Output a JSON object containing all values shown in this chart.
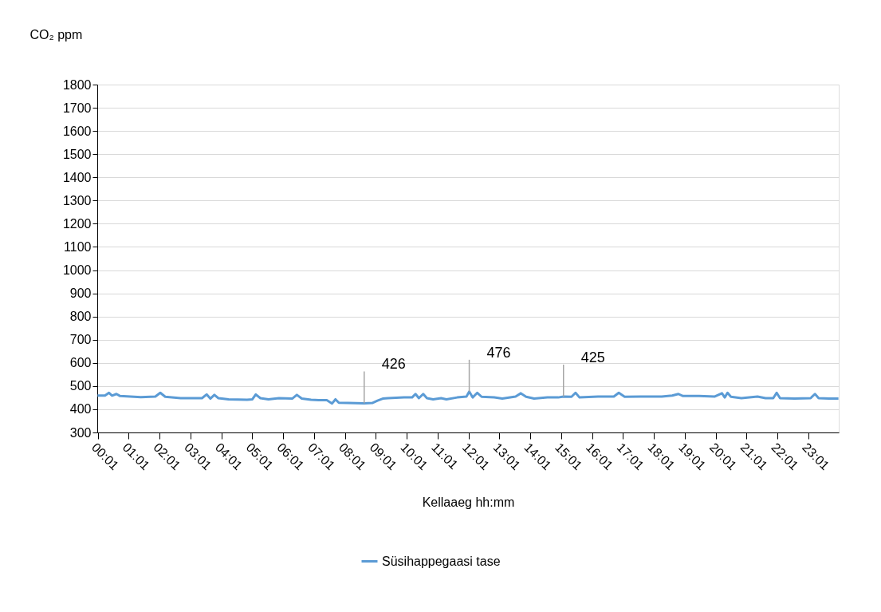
{
  "chart_data": {
    "type": "line",
    "xlabel": "Kellaaeg hh:mm",
    "ylabel": "CO₂ ppm",
    "x": [
      0.01,
      0.25,
      0.38,
      0.48,
      0.62,
      0.74,
      1.41,
      1.88,
      2.04,
      2.2,
      2.7,
      3.39,
      3.54,
      3.66,
      3.79,
      3.92,
      4.25,
      4.85,
      5.02,
      5.13,
      5.28,
      5.54,
      5.88,
      6.31,
      6.46,
      6.62,
      6.92,
      7.17,
      7.43,
      7.6,
      7.71,
      7.82,
      8.12,
      8.64,
      8.9,
      9.07,
      9.24,
      9.41,
      9.93,
      10.19,
      10.3,
      10.41,
      10.55,
      10.67,
      10.87,
      11.13,
      11.3,
      11.65,
      11.95,
      12.04,
      12.15,
      12.3,
      12.44,
      12.85,
      13.11,
      13.54,
      13.71,
      13.88,
      14.14,
      14.57,
      14.92,
      15.09,
      15.35,
      15.48,
      15.61,
      16.21,
      16.72,
      16.88,
      17.07,
      17.58,
      18.27,
      18.61,
      18.81,
      18.96,
      19.48,
      19.99,
      20.22,
      20.31,
      20.4,
      20.51,
      20.85,
      21.37,
      21.63,
      21.88,
      21.99,
      22.1,
      22.57,
      23.09,
      23.23,
      23.35,
      23.69,
      23.99
    ],
    "series": [
      {
        "name": "Süsihappegaasi tase",
        "color": "#5b9bd5",
        "values": [
          459,
          459,
          471,
          459,
          466,
          457,
          452,
          455,
          471,
          454,
          448,
          448,
          464,
          446,
          462,
          448,
          443,
          441,
          443,
          464,
          448,
          443,
          448,
          446,
          462,
          446,
          441,
          439,
          439,
          425,
          443,
          428,
          427,
          426,
          427,
          437,
          446,
          448,
          451,
          451,
          466,
          448,
          466,
          448,
          443,
          448,
          443,
          451,
          455,
          476,
          451,
          471,
          454,
          451,
          446,
          455,
          469,
          454,
          446,
          451,
          451,
          455,
          454,
          471,
          451,
          455,
          455,
          471,
          454,
          455,
          455,
          459,
          466,
          457,
          457,
          455,
          469,
          451,
          471,
          454,
          448,
          455,
          448,
          448,
          471,
          448,
          446,
          448,
          466,
          448,
          446,
          446
        ]
      }
    ],
    "xlim": [
      0,
      24
    ],
    "xticks": [
      {
        "value": 0.0167,
        "label": "00:01"
      },
      {
        "value": 1.0167,
        "label": "01:01"
      },
      {
        "value": 2.0167,
        "label": "02:01"
      },
      {
        "value": 3.0167,
        "label": "03:01"
      },
      {
        "value": 4.0167,
        "label": "04:01"
      },
      {
        "value": 5.0167,
        "label": "05:01"
      },
      {
        "value": 6.0167,
        "label": "06:01"
      },
      {
        "value": 7.0167,
        "label": "07:01"
      },
      {
        "value": 8.0167,
        "label": "08:01"
      },
      {
        "value": 9.0167,
        "label": "09:01"
      },
      {
        "value": 10.0167,
        "label": "10:01"
      },
      {
        "value": 11.0167,
        "label": "11:01"
      },
      {
        "value": 12.0167,
        "label": "12:01"
      },
      {
        "value": 13.0167,
        "label": "13:01"
      },
      {
        "value": 14.0167,
        "label": "14:01"
      },
      {
        "value": 15.0167,
        "label": "15:01"
      },
      {
        "value": 16.0167,
        "label": "16:01"
      },
      {
        "value": 17.0167,
        "label": "17:01"
      },
      {
        "value": 18.0167,
        "label": "18:01"
      },
      {
        "value": 19.0167,
        "label": "19:01"
      },
      {
        "value": 20.0167,
        "label": "20:01"
      },
      {
        "value": 21.0167,
        "label": "21:01"
      },
      {
        "value": 22.0167,
        "label": "22:01"
      },
      {
        "value": 23.0167,
        "label": "23:01"
      }
    ],
    "ylim": [
      300,
      1800
    ],
    "yticks": [
      300,
      400,
      500,
      600,
      700,
      800,
      900,
      1000,
      1100,
      1200,
      1300,
      1400,
      1500,
      1600,
      1700,
      1800
    ],
    "grid": "y",
    "legend": "bottom",
    "marker": "none",
    "line_style": "solid",
    "annotations": [
      {
        "text": "426",
        "x": 8.64,
        "y": 426
      },
      {
        "text": "476",
        "x": 12.04,
        "y": 476
      },
      {
        "text": "425",
        "x": 15.09,
        "y": 455
      }
    ]
  }
}
